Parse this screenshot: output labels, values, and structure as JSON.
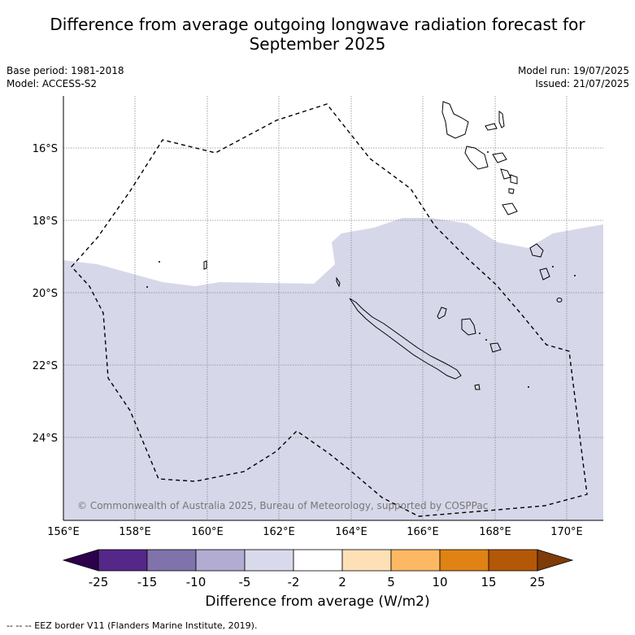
{
  "title_line1": "Difference from average outgoing longwave radiation forecast for",
  "title_line2": "September 2025",
  "meta_left": {
    "base_period": "Base period: 1981-2018",
    "model": "Model: ACCESS-S2"
  },
  "meta_right": {
    "model_run": "Model run: 19/07/2025",
    "issued": "Issued: 21/07/2025"
  },
  "map": {
    "lat_labels": [
      "16°S",
      "18°S",
      "20°S",
      "22°S",
      "24°S"
    ],
    "lon_labels": [
      "156°E",
      "158°E",
      "160°E",
      "162°E",
      "164°E",
      "166°E",
      "168°E",
      "170°E"
    ],
    "copyright": "© Commonwealth of Australia 2025, Bureau of Meteorology, supported by COSPPac",
    "colors": {
      "anomaly_fill": "#d7d7ea",
      "land_edge": "#000000",
      "grid": "#888888"
    }
  },
  "colorbar": {
    "label": "Difference from average (W/m2)",
    "ticks": [
      "-25",
      "-15",
      "-10",
      "-5",
      "-2",
      "2",
      "5",
      "10",
      "15",
      "25"
    ],
    "colors": [
      "#2d004b",
      "#542788",
      "#8073ac",
      "#b2abd2",
      "#d8daeb",
      "#ffffff",
      "#fee0b6",
      "#fdb863",
      "#e08214",
      "#b35806",
      "#7f3b08"
    ]
  },
  "footnote": "-- -- -- EEZ border V11 (Flanders Marine Institute, 2019)."
}
